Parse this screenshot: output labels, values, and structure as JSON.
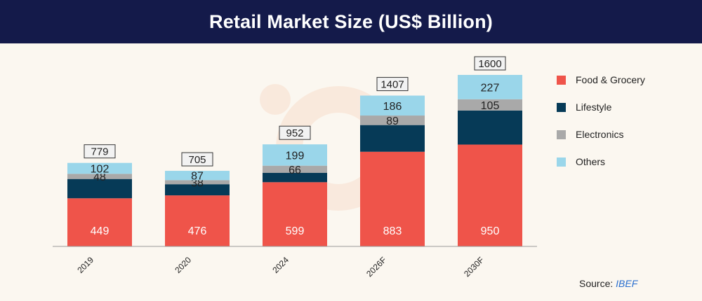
{
  "header": {
    "title": "Retail Market Size (US$ Billion)"
  },
  "chart_data": {
    "type": "bar",
    "stacked": true,
    "categories": [
      "2019",
      "2020",
      "2024",
      "2026F",
      "2030F"
    ],
    "series": [
      {
        "name": "Food & Grocery",
        "color": "#ef544a",
        "values": [
          449,
          476,
          599,
          883,
          950
        ],
        "labels": [
          "449",
          "476",
          "599",
          "883",
          "950"
        ]
      },
      {
        "name": "Lifestyle",
        "color": "#063a57",
        "values": [
          180,
          104,
          88,
          249,
          318
        ],
        "labels": [
          "",
          "",
          "",
          "",
          ""
        ]
      },
      {
        "name": "Electronics",
        "color": "#a9a9a9",
        "values": [
          48,
          38,
          66,
          89,
          105
        ],
        "labels": [
          "48",
          "38",
          "66",
          "89",
          "105"
        ]
      },
      {
        "name": "Others",
        "color": "#9ad6ea",
        "values": [
          102,
          87,
          199,
          186,
          227
        ],
        "labels": [
          "102",
          "87",
          "199",
          "186",
          "227"
        ]
      }
    ],
    "totals": [
      "779",
      "705",
      "952",
      "1407",
      "1600"
    ],
    "title": "Retail Market Size (US$ Billion)",
    "xlabel": "",
    "ylabel": "",
    "ylim": [
      0,
      1600
    ],
    "legend_position": "right",
    "grid": false
  },
  "legend": {
    "items": [
      {
        "label": "Food & Grocery",
        "color": "#ef544a"
      },
      {
        "label": "Lifestyle",
        "color": "#063a57"
      },
      {
        "label": "Electronics",
        "color": "#a9a9a9"
      },
      {
        "label": "Others",
        "color": "#9ad6ea"
      }
    ]
  },
  "source": {
    "prefix": "Source:",
    "name": "IBEF"
  }
}
